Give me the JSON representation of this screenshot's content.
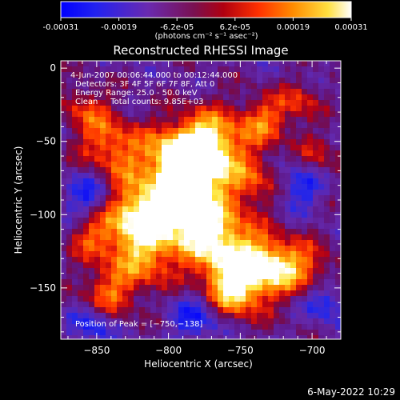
{
  "colorbar": {
    "ticks": [
      "-0.00031",
      "-0.00019",
      "-6.2e-05",
      "6.2e-05",
      "0.00019",
      "0.00031"
    ],
    "units": "(photons cm⁻² s⁻¹ asec⁻²)",
    "colormap": [
      "#0000ff",
      "#5a1a9a",
      "#8b0a3a",
      "#c00000",
      "#ff4000",
      "#ff9a00",
      "#ffff66",
      "#ffffff"
    ]
  },
  "chart_data": {
    "type": "heatmap",
    "title": "Reconstructed RHESSI Image",
    "xlabel": "Heliocentric X (arcsec)",
    "ylabel": "Heliocentric Y (arcsec)",
    "xlim": [
      -875,
      -680
    ],
    "ylim": [
      -185,
      5
    ],
    "xticks": [
      -850,
      -800,
      -750,
      -700
    ],
    "xtick_labels": [
      "−850",
      "−800",
      "−750",
      "−700"
    ],
    "yticks": [
      0,
      -50,
      -100,
      -150
    ],
    "ytick_labels": [
      "0",
      "−50",
      "−100",
      "−150"
    ],
    "value_range": [
      -0.00031,
      0.00031
    ],
    "peak": [
      -750,
      -138
    ],
    "annotations": [
      "4-Jun-2007 00:06:44.000 to 00:12:44.000",
      "Detectors: 3F 4F 5F 6F 7F 8F, Att 0",
      "Energy Range: 25.0 - 50.0 keV",
      "Clean     Total counts: 9.85E+03"
    ],
    "peak_label": "Position of Peak = [−750,−138]"
  },
  "footer": {
    "timestamp": "6-May-2022 10:29"
  }
}
